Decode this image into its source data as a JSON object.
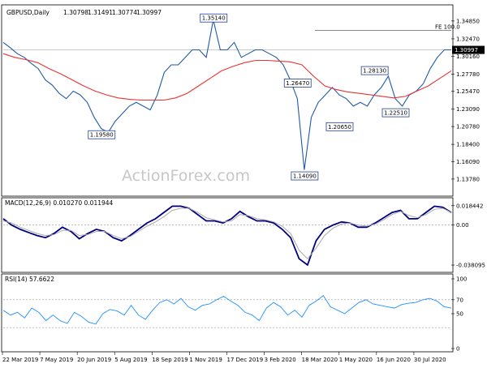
{
  "chart_data": [
    {
      "type": "line",
      "panel": "price",
      "title": "GBPUSD,Daily",
      "ohlc": {
        "open": "1.30798",
        "high": "1.31491",
        "low": "1.30774",
        "close": "1.30997"
      },
      "current_price_label": "1.30997",
      "ylim": [
        1.115,
        1.37
      ],
      "y_ticks": [
        "1.34850",
        "1.32470",
        "1.30160",
        "1.27780",
        "1.25470",
        "1.23090",
        "1.20780",
        "1.18400",
        "1.16090",
        "1.13780"
      ],
      "x_ticks": [
        "22 Mar 2019",
        "7 May 2019",
        "20 Jun 2019",
        "5 Aug 2019",
        "18 Sep 2019",
        "1 Nov 2019",
        "17 Dec 2019",
        "3 Feb 2020",
        "18 Mar 2020",
        "1 May 2020",
        "16 Jun 2020",
        "30 Jul 2020"
      ],
      "price_series": [
        1.32,
        1.313,
        1.305,
        1.3,
        1.292,
        1.285,
        1.27,
        1.263,
        1.252,
        1.245,
        1.255,
        1.25,
        1.24,
        1.22,
        1.205,
        1.2,
        1.215,
        1.225,
        1.235,
        1.24,
        1.235,
        1.23,
        1.25,
        1.28,
        1.29,
        1.29,
        1.3,
        1.31,
        1.31,
        1.3,
        1.35,
        1.31,
        1.31,
        1.32,
        1.3,
        1.305,
        1.31,
        1.31,
        1.305,
        1.3,
        1.29,
        1.27,
        1.245,
        1.15,
        1.22,
        1.24,
        1.25,
        1.26,
        1.25,
        1.245,
        1.235,
        1.24,
        1.235,
        1.25,
        1.26,
        1.275,
        1.245,
        1.235,
        1.25,
        1.255,
        1.265,
        1.285,
        1.3,
        1.31,
        1.31
      ],
      "moving_average": [
        1.305,
        1.3,
        1.297,
        1.293,
        1.285,
        1.278,
        1.27,
        1.262,
        1.255,
        1.25,
        1.246,
        1.244,
        1.243,
        1.243,
        1.243,
        1.246,
        1.252,
        1.262,
        1.272,
        1.282,
        1.288,
        1.293,
        1.296,
        1.296,
        1.295,
        1.294,
        1.29,
        1.275,
        1.262,
        1.257,
        1.254,
        1.252,
        1.25,
        1.248,
        1.246,
        1.248,
        1.255,
        1.262,
        1.272,
        1.282
      ],
      "annotations": [
        {
          "label": "1.35140",
          "x_index": 30,
          "y": 1.3514
        },
        {
          "label": "1.19580",
          "x_index": 14,
          "y": 1.1958
        },
        {
          "label": "1.26470",
          "x_index": 42,
          "y": 1.2647
        },
        {
          "label": "1.14090",
          "x_index": 43,
          "y": 1.1409
        },
        {
          "label": "1.20650",
          "x_index": 48,
          "y": 1.2065
        },
        {
          "label": "1.28130",
          "x_index": 53,
          "y": 1.2813
        },
        {
          "label": "1.22510",
          "x_index": 56,
          "y": 1.2251
        }
      ],
      "fe_label": "FE 100.0",
      "fe_level": 1.336,
      "colors": {
        "ma": "#e63434",
        "price": "#1f5ba6"
      }
    },
    {
      "type": "line",
      "panel": "macd",
      "title": "MACD(12,26,9) 0.010270 0.011944",
      "y_ticks": [
        "0.018442",
        "0.00",
        "-0.038095"
      ],
      "ylim": [
        -0.045,
        0.026
      ],
      "series": [
        {
          "name": "MACD(12,26,9)",
          "values": [
            0.006,
            0.0,
            -0.004,
            -0.007,
            -0.01,
            -0.012,
            -0.008,
            -0.002,
            -0.006,
            -0.013,
            -0.008,
            -0.004,
            -0.006,
            -0.012,
            -0.015,
            -0.01,
            -0.004,
            0.002,
            0.006,
            0.012,
            0.018,
            0.018,
            0.016,
            0.01,
            0.004,
            0.004,
            0.002,
            0.006,
            0.013,
            0.008,
            0.004,
            0.004,
            0.002,
            -0.004,
            -0.012,
            -0.032,
            -0.038,
            -0.015,
            -0.004,
            0.0,
            0.003,
            0.002,
            -0.002,
            -0.002,
            0.002,
            0.007,
            0.012,
            0.014,
            0.006,
            0.006,
            0.012,
            0.018,
            0.017,
            0.012
          ],
          "color": "#000080"
        },
        {
          "name": "Signal",
          "values": [
            0.004,
            0.002,
            -0.002,
            -0.005,
            -0.008,
            -0.01,
            -0.009,
            -0.005,
            -0.005,
            -0.01,
            -0.009,
            -0.006,
            -0.006,
            -0.01,
            -0.013,
            -0.011,
            -0.006,
            -0.001,
            0.003,
            0.008,
            0.014,
            0.016,
            0.016,
            0.012,
            0.007,
            0.005,
            0.003,
            0.004,
            0.01,
            0.009,
            0.006,
            0.005,
            0.003,
            -0.001,
            -0.008,
            -0.024,
            -0.032,
            -0.022,
            -0.01,
            -0.003,
            0.001,
            0.002,
            0.0,
            -0.001,
            0.001,
            0.005,
            0.01,
            0.013,
            0.009,
            0.007,
            0.01,
            0.015,
            0.016,
            0.012
          ],
          "color": "#a9a9a9"
        }
      ],
      "zero_line": 0
    },
    {
      "type": "line",
      "panel": "rsi",
      "title": "RSI(14) 57.6622",
      "y_ticks": [
        "100",
        "70",
        "50",
        "0"
      ],
      "ylim": [
        0,
        100
      ],
      "levels": [
        70,
        30
      ],
      "series": [
        {
          "name": "RSI(14)",
          "values": [
            55,
            48,
            52,
            44,
            58,
            52,
            40,
            48,
            40,
            36,
            52,
            46,
            38,
            35,
            50,
            56,
            54,
            48,
            62,
            48,
            42,
            55,
            66,
            70,
            64,
            72,
            60,
            55,
            62,
            64,
            70,
            75,
            68,
            62,
            52,
            48,
            40,
            58,
            66,
            60,
            48,
            55,
            45,
            62,
            68,
            76,
            60,
            55,
            50,
            58,
            66,
            70,
            64,
            62,
            60,
            58,
            63,
            65,
            66,
            70,
            72,
            68,
            60,
            58
          ],
          "color": "#1e90ff"
        }
      ]
    }
  ],
  "watermark": "ActionForex.com"
}
